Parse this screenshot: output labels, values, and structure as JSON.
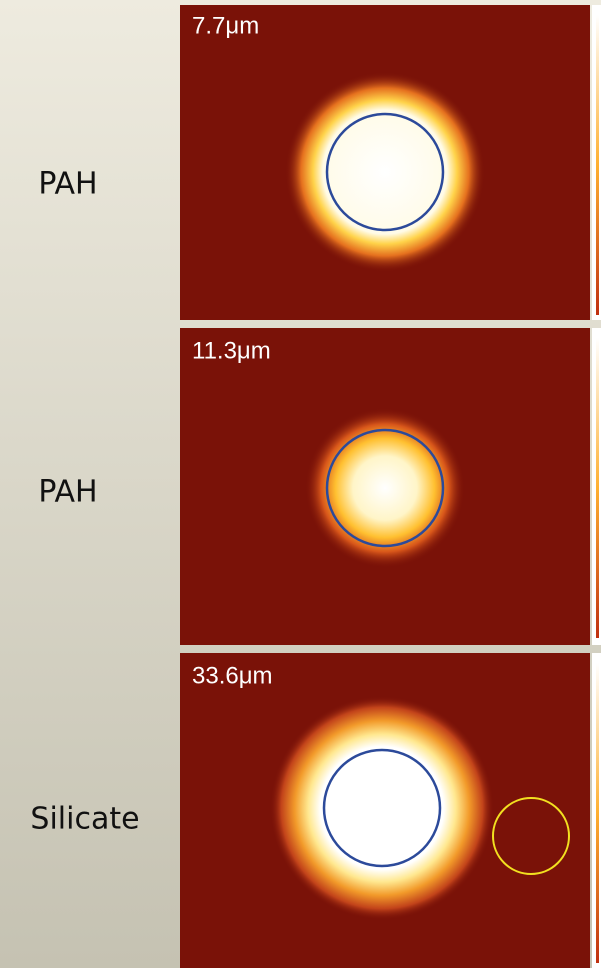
{
  "panels": [
    {
      "label": "PAH",
      "wavelength": "7.7μm"
    },
    {
      "label": "PAH",
      "wavelength": "11.3μm"
    },
    {
      "label": "Silicate",
      "wavelength": "33.6μm"
    }
  ]
}
